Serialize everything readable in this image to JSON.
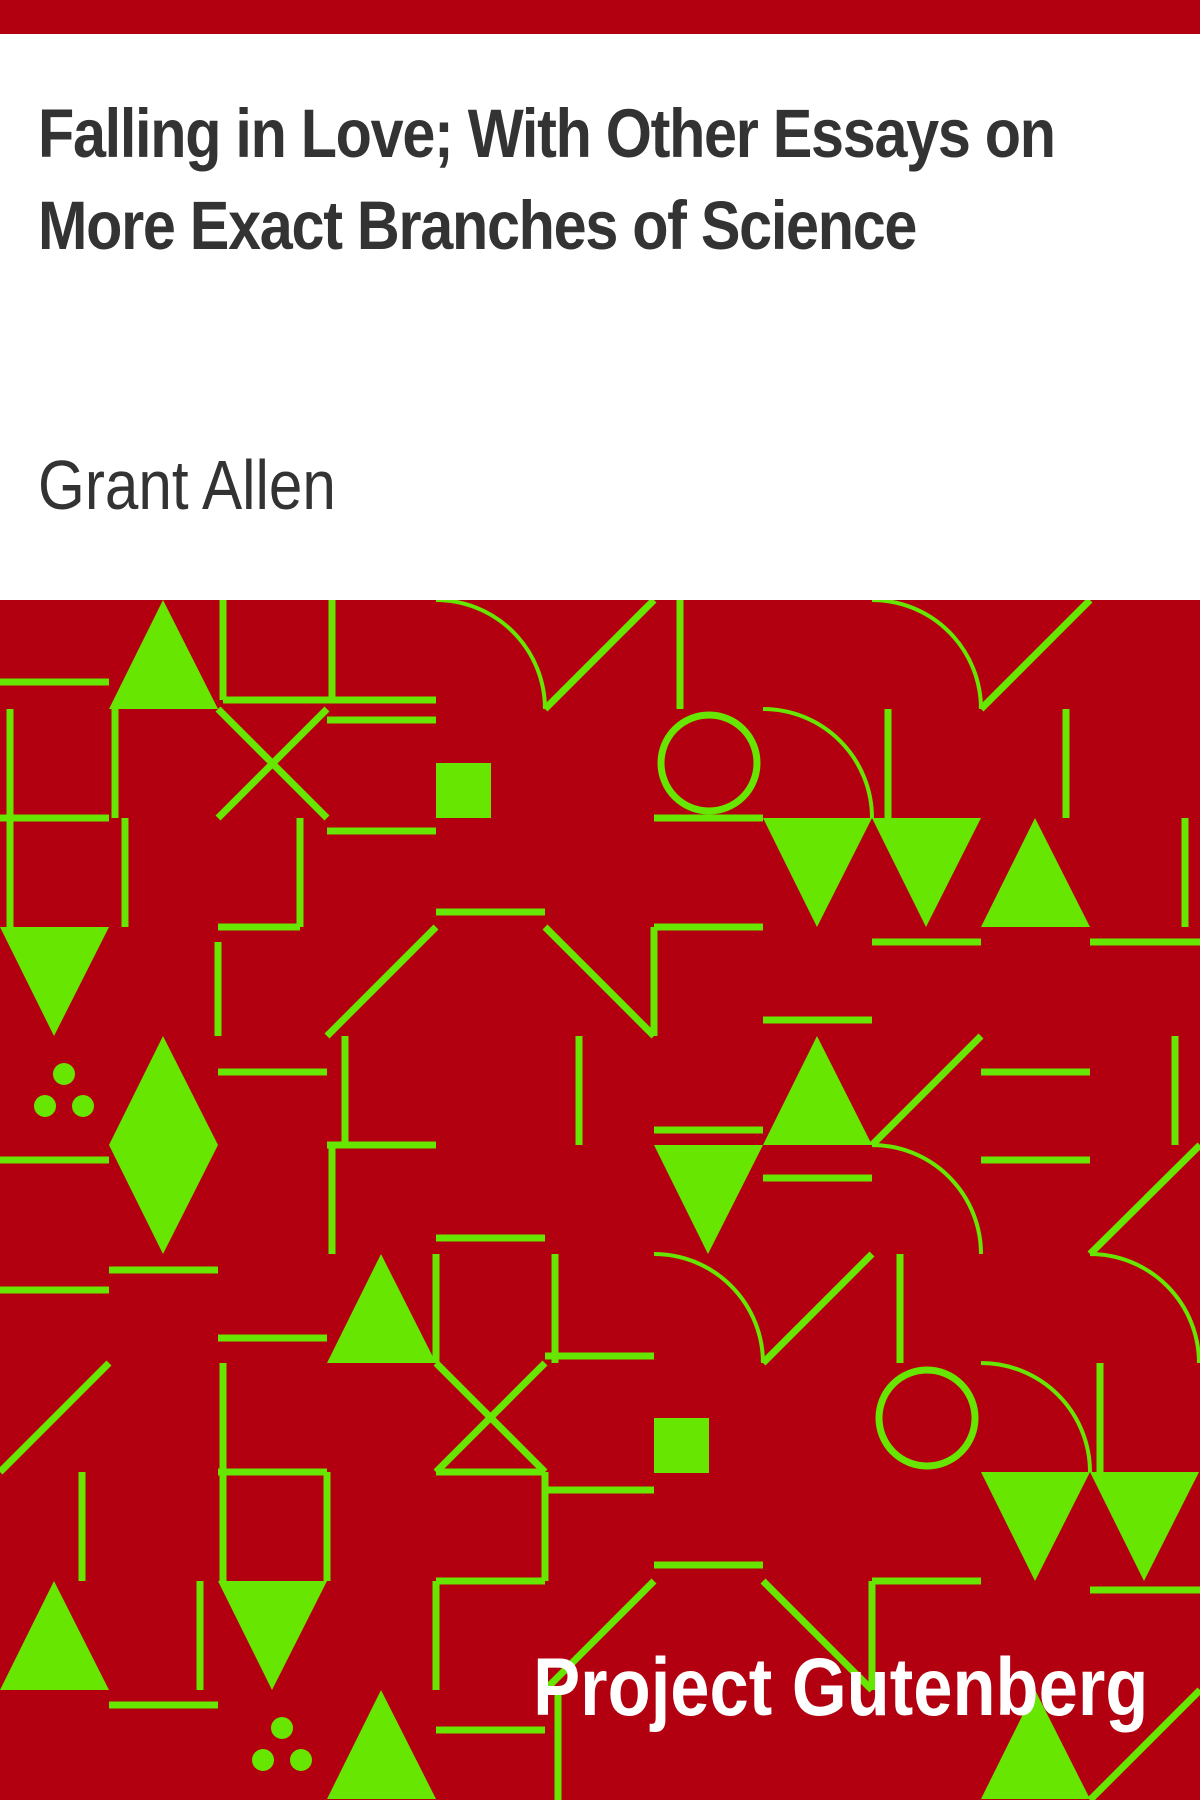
{
  "book": {
    "title": "Falling in Love; With Other Essays on More Exact Branches of Science",
    "author": "Grant Allen",
    "publisher": "Project Gutenberg"
  },
  "colors": {
    "background": "#ffffff",
    "accent_red": "#b30010",
    "pattern_green": "#66e600",
    "text_dark": "#333333",
    "publisher_text": "#ffffff"
  },
  "pattern": {
    "motifs": [
      "triangle",
      "inverted-triangle",
      "diamond",
      "circle",
      "arc",
      "cross",
      "square",
      "dots",
      "line"
    ]
  }
}
